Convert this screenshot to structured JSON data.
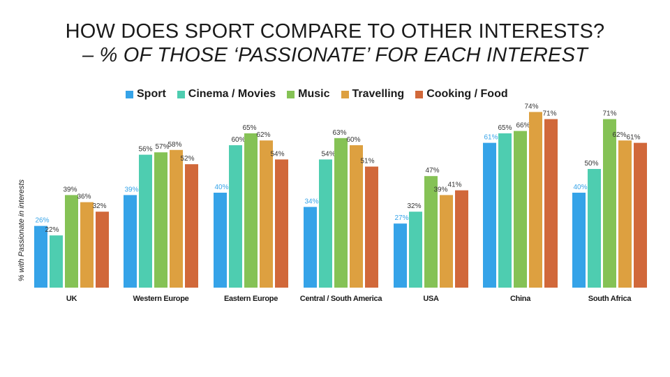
{
  "title_line1": "HOW DOES SPORT COMPARE TO OTHER INTERESTS?",
  "title_line2": "– % OF THOSE ‘PASSIONATE’ FOR EACH INTEREST",
  "colors": [
    "#35A3E8",
    "#4ECDB0",
    "#85C255",
    "#DDA040",
    "#D1683A"
  ],
  "chart_data": {
    "type": "bar",
    "title": "HOW DOES SPORT COMPARE TO OTHER INTERESTS? – % OF THOSE ‘PASSIONATE’ FOR EACH INTEREST",
    "ylabel": "% with Passionate in interests",
    "xlabel": "",
    "ylim": [
      0,
      80
    ],
    "grid": false,
    "legend_position": "top",
    "categories": [
      "UK",
      "Western Europe",
      "Eastern Europe",
      "Central / South America",
      "USA",
      "China",
      "South Africa"
    ],
    "series": [
      {
        "name": "Sport",
        "values": [
          26,
          39,
          40,
          34,
          27,
          61,
          40
        ]
      },
      {
        "name": "Cinema / Movies",
        "values": [
          22,
          56,
          60,
          54,
          32,
          65,
          50
        ]
      },
      {
        "name": "Music",
        "values": [
          39,
          57,
          65,
          63,
          47,
          66,
          71
        ]
      },
      {
        "name": "Travelling",
        "values": [
          36,
          58,
          62,
          60,
          39,
          74,
          62
        ]
      },
      {
        "name": "Cooking / Food",
        "values": [
          32,
          52,
          54,
          51,
          41,
          71,
          61
        ]
      }
    ]
  }
}
